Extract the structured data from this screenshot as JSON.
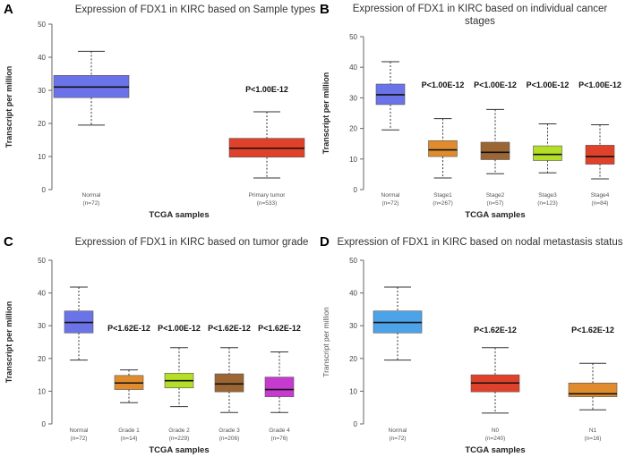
{
  "figure": {
    "panels": [
      "A",
      "B",
      "C",
      "D"
    ]
  },
  "chart_data": [
    {
      "type": "boxplot",
      "label": "A",
      "title": "Expression of FDX1 in KIRC based on Sample types",
      "xlabel": "TCGA samples",
      "ylabel": "Transcript per million",
      "ylim": [
        0,
        50
      ],
      "yticks": [
        0,
        10,
        20,
        30,
        40,
        50
      ],
      "categories": [
        "Normal",
        "Primary tumor"
      ],
      "counts": [
        "(n=72)",
        "(n=533)"
      ],
      "colors": [
        "#6b73e8",
        "#e0412a"
      ],
      "boxes": [
        {
          "min": 19.5,
          "q1": 27.8,
          "median": 31,
          "q3": 34.5,
          "max": 41.8
        },
        {
          "min": 3.5,
          "q1": 9.8,
          "median": 12.5,
          "q3": 15.5,
          "max": 23.5
        }
      ],
      "annotations": [
        "",
        "P<1.00E-12"
      ]
    },
    {
      "type": "boxplot",
      "label": "B",
      "title": "Expression of FDX1 in KIRC based on individual cancer stages",
      "xlabel": "TCGA samples",
      "ylabel": "Transcript per million",
      "ylim": [
        0,
        50
      ],
      "yticks": [
        0,
        10,
        20,
        30,
        40,
        50
      ],
      "categories": [
        "Normal",
        "Stage1",
        "Stage2",
        "Stage3",
        "Stage4"
      ],
      "counts": [
        "(n=72)",
        "(n=267)",
        "(n=57)",
        "(n=123)",
        "(n=84)"
      ],
      "colors": [
        "#6b73e8",
        "#e08c2e",
        "#9c6634",
        "#b4df26",
        "#e0412a"
      ],
      "boxes": [
        {
          "min": 19.5,
          "q1": 27.8,
          "median": 31,
          "q3": 34.5,
          "max": 41.8
        },
        {
          "min": 3.8,
          "q1": 10.8,
          "median": 13,
          "q3": 16,
          "max": 23.2
        },
        {
          "min": 5.2,
          "q1": 9.8,
          "median": 12.2,
          "q3": 15.5,
          "max": 26.2
        },
        {
          "min": 5.5,
          "q1": 9.5,
          "median": 11.5,
          "q3": 14.3,
          "max": 21.5
        },
        {
          "min": 3.5,
          "q1": 8.3,
          "median": 10.8,
          "q3": 14.5,
          "max": 21.2
        }
      ],
      "annotations": [
        "",
        "P<1.00E-12",
        "P<1.00E-12",
        "P<1.00E-12",
        "P<1.00E-12"
      ]
    },
    {
      "type": "boxplot",
      "label": "C",
      "title": "Expression of FDX1 in KIRC based on tumor grade",
      "xlabel": "TCGA samples",
      "ylabel": "Transcript per million",
      "ylim": [
        0,
        50
      ],
      "yticks": [
        0,
        10,
        20,
        30,
        40,
        50
      ],
      "categories": [
        "Normal",
        "Grade 1",
        "Grade 2",
        "Grade 3",
        "Grade 4"
      ],
      "counts": [
        "(n=72)",
        "(n=14)",
        "(n=229)",
        "(n=206)",
        "(n=76)"
      ],
      "colors": [
        "#6b73e8",
        "#e08c2e",
        "#b4df26",
        "#9c6634",
        "#c63ad0"
      ],
      "boxes": [
        {
          "min": 19.5,
          "q1": 27.8,
          "median": 31,
          "q3": 34.5,
          "max": 41.8
        },
        {
          "min": 6.5,
          "q1": 10.5,
          "median": 12.5,
          "q3": 14.8,
          "max": 16.5
        },
        {
          "min": 5.3,
          "q1": 11,
          "median": 13.2,
          "q3": 15.5,
          "max": 23.3
        },
        {
          "min": 3.5,
          "q1": 9.8,
          "median": 12.2,
          "q3": 15.3,
          "max": 23.3
        },
        {
          "min": 3.5,
          "q1": 8.3,
          "median": 10.5,
          "q3": 14.3,
          "max": 22
        }
      ],
      "annotations": [
        "",
        "P<1.62E-12",
        "P<1.00E-12",
        "P<1.62E-12",
        "P<1.62E-12"
      ]
    },
    {
      "type": "boxplot",
      "label": "D",
      "title": "Expression of FDX1 in KIRC based on nodal metastasis status",
      "xlabel": "TCGA samples",
      "ylabel": "Transcript per million",
      "ylim": [
        0,
        50
      ],
      "yticks": [
        0,
        10,
        20,
        30,
        40,
        50
      ],
      "categories": [
        "Normal",
        "N0",
        "N1"
      ],
      "counts": [
        "(n=72)",
        "(n=240)",
        "(n=16)"
      ],
      "colors": [
        "#4da3e8",
        "#e0412a",
        "#e08c2e"
      ],
      "boxes": [
        {
          "min": 19.5,
          "q1": 27.8,
          "median": 31,
          "q3": 34.5,
          "max": 41.8
        },
        {
          "min": 3.3,
          "q1": 9.8,
          "median": 12.5,
          "q3": 15,
          "max": 23.3
        },
        {
          "min": 4.3,
          "q1": 8.3,
          "median": 9.2,
          "q3": 12.5,
          "max": 18.5
        }
      ],
      "annotations": [
        "",
        "P<1.62E-12",
        "P<1.62E-12"
      ]
    }
  ]
}
